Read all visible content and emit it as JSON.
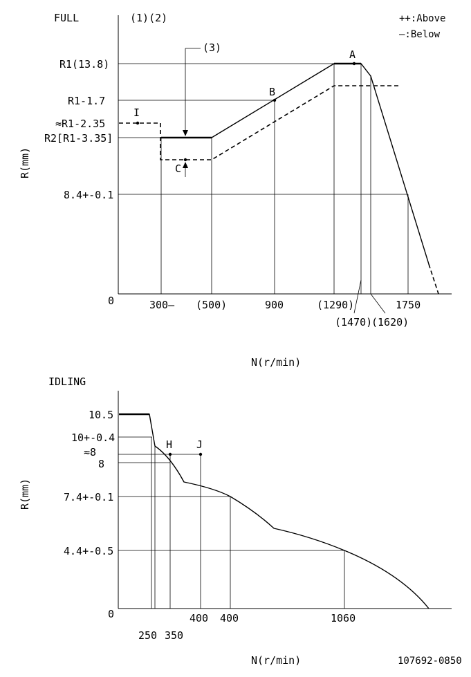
{
  "full": {
    "title": "FULL",
    "refs": "(1)(2)",
    "legend_above": "++:Above",
    "legend_below": "—:Below",
    "ylabel": "R(mm)",
    "xlabel": "N(r/min)",
    "zero": "0",
    "y_labels": {
      "r1": "R1(13.8)",
      "r1_17": "R1-1.7",
      "r1_235": "≈R1-2.35",
      "r2": "R2[R1-3.35]",
      "v84": "8.4+-0.1"
    },
    "x_labels": {
      "n300": "300—",
      "n500": "(500)",
      "n900": "900",
      "n1290": "(1290)",
      "n1750": "1750",
      "n1470": "(1470)",
      "n1620": "(1620)"
    },
    "points": {
      "a": "A",
      "b": "B",
      "c": "C",
      "i": "I",
      "ref3": "(3)"
    }
  },
  "idling": {
    "title": "IDLING",
    "ylabel": "R(mm)",
    "xlabel": "N(r/min)",
    "zero": "0",
    "y_labels": {
      "v105": "10.5",
      "v10": "10+-0.4",
      "v8a": "≈8",
      "v8": "8",
      "v74": "7.4+-0.1",
      "v44": "4.4+-0.5"
    },
    "x_labels": {
      "n250": "250",
      "n350": "350",
      "n400a": "400",
      "n400b": "400",
      "n1060": "1060"
    },
    "points": {
      "h": "H",
      "j": "J"
    }
  },
  "doc_code": "107692-0850"
}
